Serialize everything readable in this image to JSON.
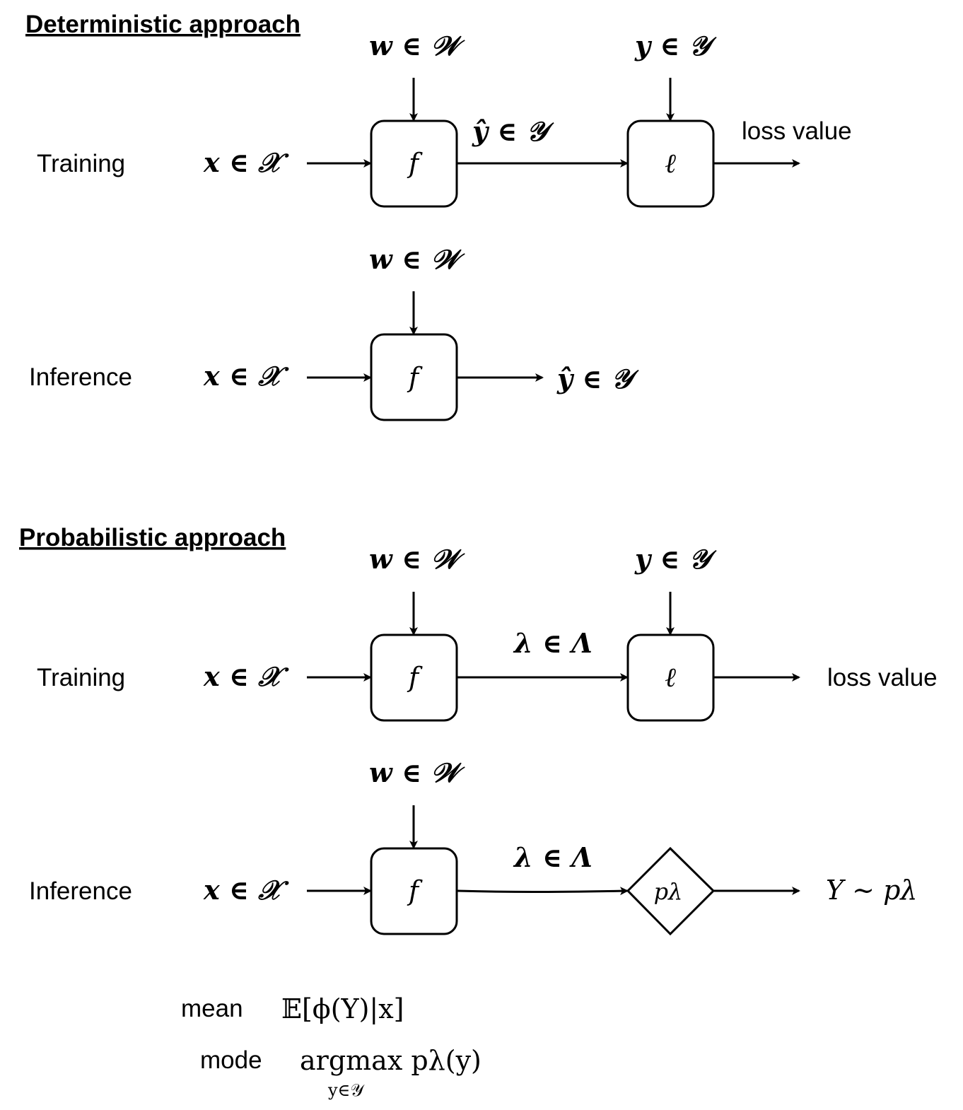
{
  "deterministic": {
    "title": "Deterministic approach",
    "training": {
      "row_label": "Training",
      "input": "x ∈ 𝒳",
      "weights": "w ∈ 𝒲",
      "model": "f",
      "prediction": "ŷ ∈ 𝒴",
      "target": "y ∈ 𝒴",
      "loss_fn": "ℓ",
      "output": "loss value"
    },
    "inference": {
      "row_label": "Inference",
      "input": "x ∈ 𝒳",
      "weights": "w ∈ 𝒲",
      "model": "f",
      "output": "ŷ ∈ 𝒴"
    }
  },
  "probabilistic": {
    "title": "Probabilistic approach",
    "training": {
      "row_label": "Training",
      "input": "x ∈ 𝒳",
      "weights": "w ∈ 𝒲",
      "model": "f",
      "params": "λ ∈ Λ",
      "target": "y ∈ 𝒴",
      "loss_fn": "ℓ",
      "output": "loss value"
    },
    "inference": {
      "row_label": "Inference",
      "input": "x ∈ 𝒳",
      "weights": "w ∈ 𝒲",
      "model": "f",
      "params": "λ ∈ Λ",
      "distribution": "pλ",
      "output": "Y ∼ pλ"
    },
    "summaries": {
      "mean_label": "mean",
      "mean_formula": "𝔼[ϕ(Y)|x]",
      "mode_label": "mode",
      "mode_formula": "argmax pλ(y)",
      "mode_subscript": "y∈𝒴"
    }
  },
  "colors": {
    "stroke": "#000000",
    "background": "#ffffff"
  }
}
